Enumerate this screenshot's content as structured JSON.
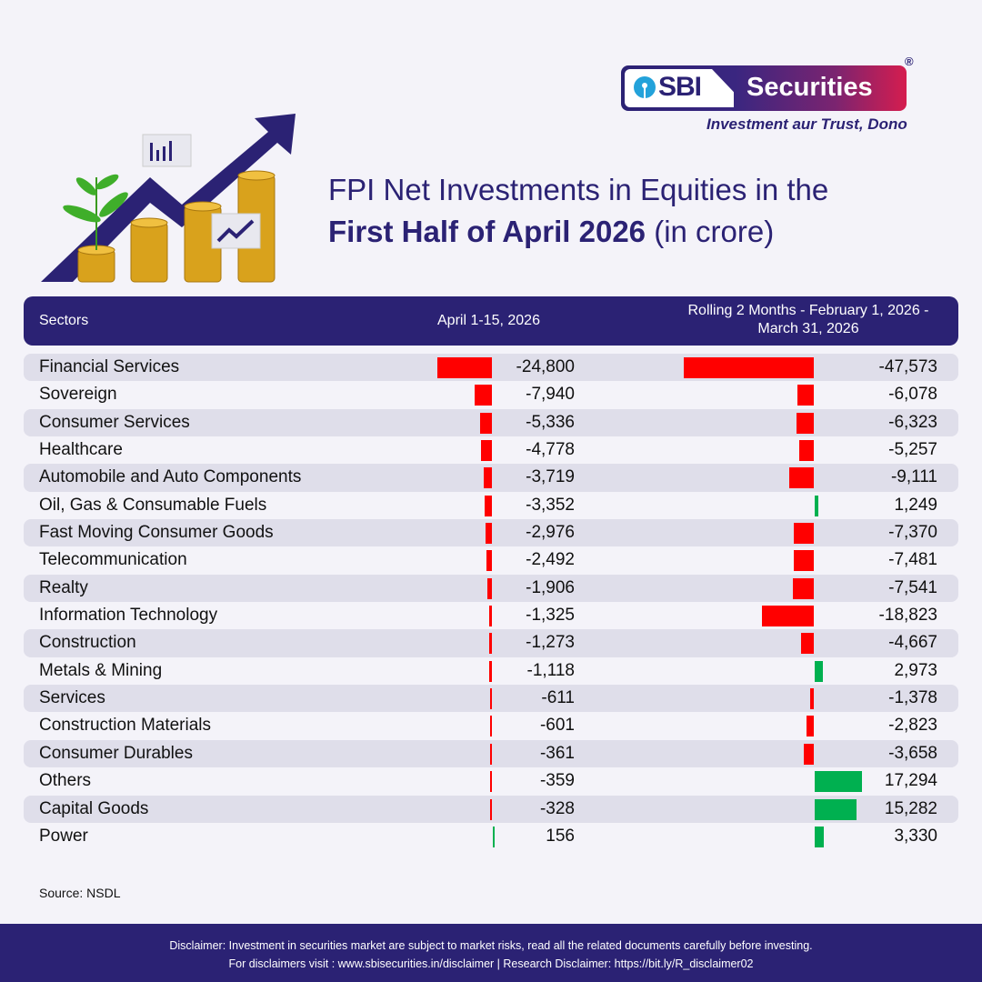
{
  "brand": {
    "logo_left": "SBI",
    "logo_right": "Securities",
    "registered_mark": "®",
    "tagline": "Investment aur Trust, Dono"
  },
  "title": {
    "line1": "FPI Net Investments in Equities in the",
    "line2_bold": "First Half of April 2026",
    "line2_regular": " (in crore)"
  },
  "table": {
    "headers": {
      "sectors": "Sectors",
      "april": "April 1-15, 2026",
      "rolling": "Rolling 2 Months - February 1, 2026 - March 31, 2026"
    },
    "rows": [
      {
        "sector": "Financial Services",
        "april": "-24,800",
        "rolling": "-47,573"
      },
      {
        "sector": "Sovereign",
        "april": "-7,940",
        "rolling": "-6,078"
      },
      {
        "sector": "Consumer Services",
        "april": "-5,336",
        "rolling": "-6,323"
      },
      {
        "sector": "Healthcare",
        "april": "-4,778",
        "rolling": "-5,257"
      },
      {
        "sector": "Automobile and Auto Components",
        "april": "-3,719",
        "rolling": "-9,111"
      },
      {
        "sector": "Oil, Gas & Consumable Fuels",
        "april": "-3,352",
        "rolling": "1,249"
      },
      {
        "sector": "Fast Moving Consumer Goods",
        "april": "-2,976",
        "rolling": "-7,370"
      },
      {
        "sector": "Telecommunication",
        "april": "-2,492",
        "rolling": "-7,481"
      },
      {
        "sector": "Realty",
        "april": "-1,906",
        "rolling": "-7,541"
      },
      {
        "sector": "Information Technology",
        "april": "-1,325",
        "rolling": "-18,823"
      },
      {
        "sector": "Construction",
        "april": "-1,273",
        "rolling": "-4,667"
      },
      {
        "sector": "Metals & Mining",
        "april": "-1,118",
        "rolling": "2,973"
      },
      {
        "sector": "Services",
        "april": "-611",
        "rolling": "-1,378"
      },
      {
        "sector": "Construction Materials",
        "april": "-601",
        "rolling": "-2,823"
      },
      {
        "sector": "Consumer Durables",
        "april": "-361",
        "rolling": "-3,658"
      },
      {
        "sector": "Others",
        "april": "-359",
        "rolling": "17,294"
      },
      {
        "sector": "Capital Goods",
        "april": "-328",
        "rolling": "15,282"
      },
      {
        "sector": "Power",
        "april": "156",
        "rolling": "3,330"
      }
    ]
  },
  "source": "Source: NSDL",
  "footer": {
    "line1": "Disclaimer: Investment in securities market are subject to market risks, read all the related documents carefully before investing.",
    "line2": "For disclaimers visit : www.sbisecurities.in/disclaimer | Research Disclaimer: https://bit.ly/R_disclaimer02"
  },
  "colors": {
    "brand_navy": "#2b2274",
    "negative": "#ff0000",
    "positive": "#00b050",
    "row_shade": "#dfdeea",
    "background": "#f4f3f9"
  },
  "chart_data": {
    "type": "bar",
    "title": "FPI Net Investments in Equities in the First Half of April 2026 (in crore)",
    "orientation": "horizontal",
    "categories": [
      "Financial Services",
      "Sovereign",
      "Consumer Services",
      "Healthcare",
      "Automobile and Auto Components",
      "Oil, Gas & Consumable Fuels",
      "Fast Moving Consumer Goods",
      "Telecommunication",
      "Realty",
      "Information Technology",
      "Construction",
      "Metals & Mining",
      "Services",
      "Construction Materials",
      "Consumer Durables",
      "Others",
      "Capital Goods",
      "Power"
    ],
    "series": [
      {
        "name": "April 1-15, 2026",
        "values": [
          -24800,
          -7940,
          -5336,
          -4778,
          -3719,
          -3352,
          -2976,
          -2492,
          -1906,
          -1325,
          -1273,
          -1118,
          -611,
          -601,
          -361,
          -359,
          -328,
          156
        ]
      },
      {
        "name": "Rolling 2 Months - February 1, 2026 - March 31, 2026",
        "values": [
          -47573,
          -6078,
          -6323,
          -5257,
          -9111,
          1249,
          -7370,
          -7481,
          -7541,
          -18823,
          -4667,
          2973,
          -1378,
          -2823,
          -3658,
          17294,
          15282,
          3330
        ]
      }
    ],
    "xlabel": "",
    "ylabel": "Sectors",
    "unit": "crore",
    "negative_color": "#ff0000",
    "positive_color": "#00b050",
    "source": "NSDL"
  }
}
